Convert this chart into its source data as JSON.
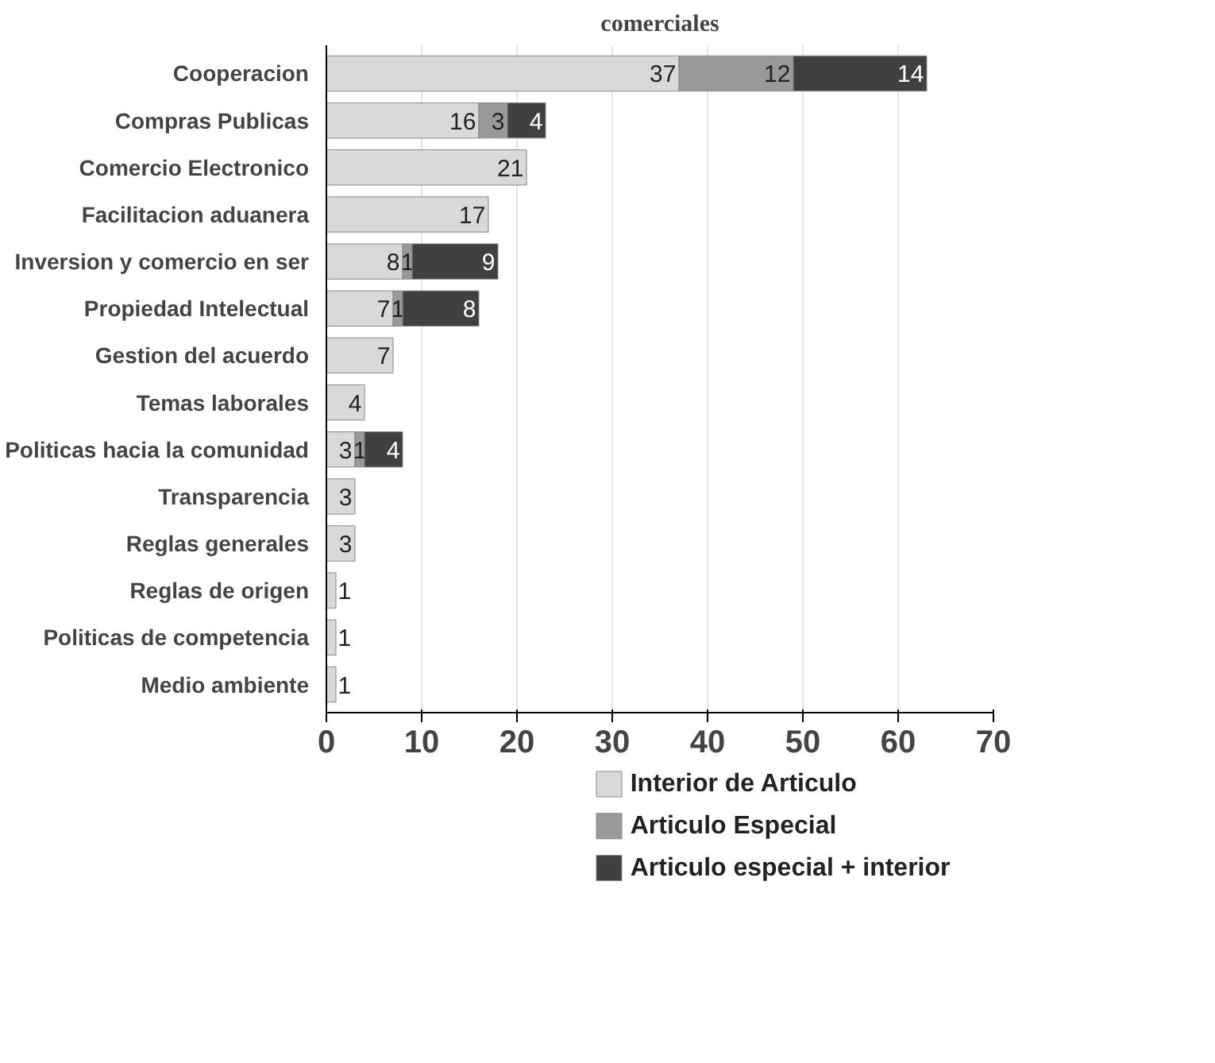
{
  "chart_data": {
    "type": "bar",
    "orientation": "horizontal",
    "stacked": true,
    "title": "comerciales",
    "categories": [
      "Cooperacion",
      "Compras Publicas",
      "Comercio Electronico",
      "Facilitacion aduanera",
      "Inversion y comercio en ser",
      "Propiedad Intelectual",
      "Gestion del acuerdo",
      "Temas laborales",
      "Politicas hacia la comunidad",
      "Transparencia",
      "Reglas generales",
      "Reglas de origen",
      "Politicas de competencia",
      "Medio ambiente"
    ],
    "series": [
      {
        "name": "Interior de Articulo",
        "color": "#d9d9d9",
        "values": [
          37,
          16,
          21,
          17,
          8,
          7,
          7,
          4,
          3,
          3,
          3,
          1,
          1,
          1
        ]
      },
      {
        "name": "Articulo Especial",
        "color": "#999999",
        "values": [
          12,
          3,
          null,
          null,
          1,
          1,
          null,
          null,
          1,
          null,
          null,
          null,
          null,
          null
        ]
      },
      {
        "name": "Articulo especial + interior",
        "color": "#404040",
        "values": [
          14,
          4,
          null,
          null,
          9,
          8,
          null,
          null,
          4,
          null,
          null,
          null,
          null,
          null
        ]
      }
    ],
    "xlim": [
      0,
      70
    ],
    "xticks": [
      0,
      10,
      20,
      30,
      40,
      50,
      60,
      70
    ],
    "grid": "x",
    "legend": "bottom",
    "data_labels": true
  }
}
